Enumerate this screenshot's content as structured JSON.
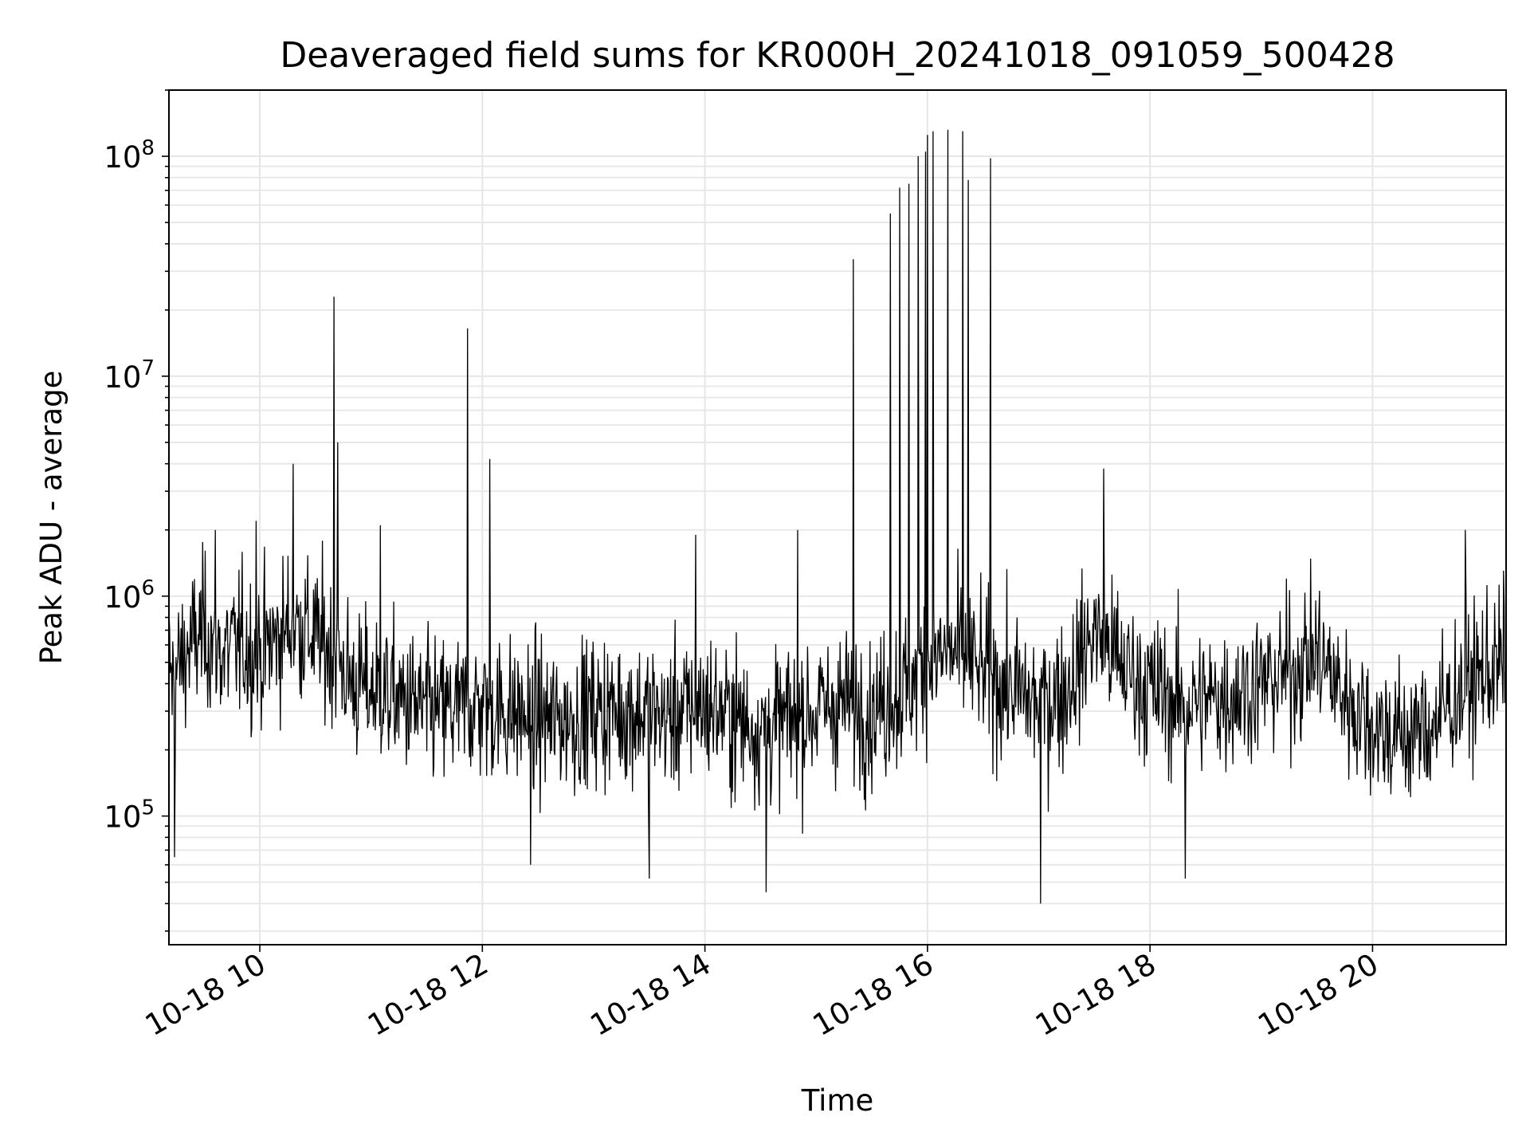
{
  "chart_data": {
    "type": "line",
    "title": "Deaveraged field sums for KR000H_20241018_091059_500428",
    "xlabel": "Time",
    "ylabel": "Peak ADU - average",
    "x_scale": "time",
    "y_scale": "log",
    "xlim": [
      "2024-10-18T09:11",
      "2024-10-18T21:12"
    ],
    "ylim": [
      26000,
      200000000
    ],
    "grid": true,
    "line_color": "#000000",
    "x_ticks": [
      {
        "time": "2024-10-18T10:00",
        "label": "10-18 10"
      },
      {
        "time": "2024-10-18T12:00",
        "label": "10-18 12"
      },
      {
        "time": "2024-10-18T14:00",
        "label": "10-18 14"
      },
      {
        "time": "2024-10-18T16:00",
        "label": "10-18 16"
      },
      {
        "time": "2024-10-18T18:00",
        "label": "10-18 18"
      },
      {
        "time": "2024-10-18T20:00",
        "label": "10-18 20"
      }
    ],
    "y_ticks": [
      {
        "value": 100000,
        "base": "10",
        "exp": "5"
      },
      {
        "value": 1000000,
        "base": "10",
        "exp": "6"
      },
      {
        "value": 10000000,
        "base": "10",
        "exp": "7"
      },
      {
        "value": 100000000,
        "base": "10",
        "exp": "8"
      }
    ],
    "series": [
      {
        "points": [
          [
            "2024-10-18T09:12",
            400000
          ],
          [
            "2024-10-18T09:20",
            550000
          ],
          [
            "2024-10-18T09:30",
            700000
          ],
          [
            "2024-10-18T09:40",
            550000
          ],
          [
            "2024-10-18T09:50",
            600000
          ],
          [
            "2024-10-18T10:00",
            550000
          ],
          [
            "2024-10-18T10:10",
            650000
          ],
          [
            "2024-10-18T10:18",
            750000
          ],
          [
            "2024-10-18T10:25",
            700000
          ],
          [
            "2024-10-18T10:35",
            600000
          ],
          [
            "2024-10-18T10:40",
            550000
          ],
          [
            "2024-10-18T10:50",
            400000
          ],
          [
            "2024-10-18T11:00",
            380000
          ],
          [
            "2024-10-18T11:15",
            340000
          ],
          [
            "2024-10-18T11:30",
            300000
          ],
          [
            "2024-10-18T11:45",
            300000
          ],
          [
            "2024-10-18T12:00",
            320000
          ],
          [
            "2024-10-18T12:20",
            290000
          ],
          [
            "2024-10-18T12:40",
            270000
          ],
          [
            "2024-10-18T13:00",
            300000
          ],
          [
            "2024-10-18T13:20",
            300000
          ],
          [
            "2024-10-18T13:40",
            280000
          ],
          [
            "2024-10-18T14:00",
            320000
          ],
          [
            "2024-10-18T14:15",
            280000
          ],
          [
            "2024-10-18T14:30",
            250000
          ],
          [
            "2024-10-18T14:45",
            270000
          ],
          [
            "2024-10-18T15:00",
            300000
          ],
          [
            "2024-10-18T15:15",
            330000
          ],
          [
            "2024-10-18T15:30",
            300000
          ],
          [
            "2024-10-18T15:45",
            350000
          ],
          [
            "2024-10-18T16:00",
            500000
          ],
          [
            "2024-10-18T16:15",
            550000
          ],
          [
            "2024-10-18T16:30",
            450000
          ],
          [
            "2024-10-18T16:45",
            380000
          ],
          [
            "2024-10-18T17:00",
            320000
          ],
          [
            "2024-10-18T17:15",
            380000
          ],
          [
            "2024-10-18T17:30",
            700000
          ],
          [
            "2024-10-18T17:45",
            480000
          ],
          [
            "2024-10-18T18:00",
            380000
          ],
          [
            "2024-10-18T18:15",
            330000
          ],
          [
            "2024-10-18T18:30",
            330000
          ],
          [
            "2024-10-18T18:45",
            360000
          ],
          [
            "2024-10-18T19:00",
            400000
          ],
          [
            "2024-10-18T19:15",
            450000
          ],
          [
            "2024-10-18T19:30",
            550000
          ],
          [
            "2024-10-18T19:45",
            350000
          ],
          [
            "2024-10-18T20:00",
            260000
          ],
          [
            "2024-10-18T20:15",
            230000
          ],
          [
            "2024-10-18T20:30",
            250000
          ],
          [
            "2024-10-18T20:45",
            350000
          ],
          [
            "2024-10-18T21:00",
            450000
          ],
          [
            "2024-10-18T21:11",
            500000
          ]
        ],
        "spikes": [
          [
            "2024-10-18T09:14",
            65000
          ],
          [
            "2024-10-18T09:36",
            2000000
          ],
          [
            "2024-10-18T09:58",
            2200000
          ],
          [
            "2024-10-18T10:18",
            4000000
          ],
          [
            "2024-10-18T10:40",
            23000000
          ],
          [
            "2024-10-18T10:42",
            5000000
          ],
          [
            "2024-10-18T11:05",
            2100000
          ],
          [
            "2024-10-18T11:52",
            16500000
          ],
          [
            "2024-10-18T12:04",
            4200000
          ],
          [
            "2024-10-18T12:26",
            60000
          ],
          [
            "2024-10-18T13:30",
            52000
          ],
          [
            "2024-10-18T13:55",
            1900000
          ],
          [
            "2024-10-18T14:33",
            45000
          ],
          [
            "2024-10-18T14:50",
            2000000
          ],
          [
            "2024-10-18T15:20",
            34000000
          ],
          [
            "2024-10-18T15:40",
            55000000
          ],
          [
            "2024-10-18T15:45",
            72000000
          ],
          [
            "2024-10-18T15:50",
            75000000
          ],
          [
            "2024-10-18T15:55",
            100000000
          ],
          [
            "2024-10-18T15:59",
            105000000
          ],
          [
            "2024-10-18T16:00",
            125000000
          ],
          [
            "2024-10-18T16:03",
            130000000
          ],
          [
            "2024-10-18T16:11",
            132000000
          ],
          [
            "2024-10-18T16:19",
            130000000
          ],
          [
            "2024-10-18T16:22",
            78000000
          ],
          [
            "2024-10-18T16:34",
            98000000
          ],
          [
            "2024-10-18T17:01",
            40000
          ],
          [
            "2024-10-18T17:35",
            3800000
          ],
          [
            "2024-10-18T18:19",
            52000
          ],
          [
            "2024-10-18T20:50",
            2000000
          ]
        ]
      }
    ]
  }
}
